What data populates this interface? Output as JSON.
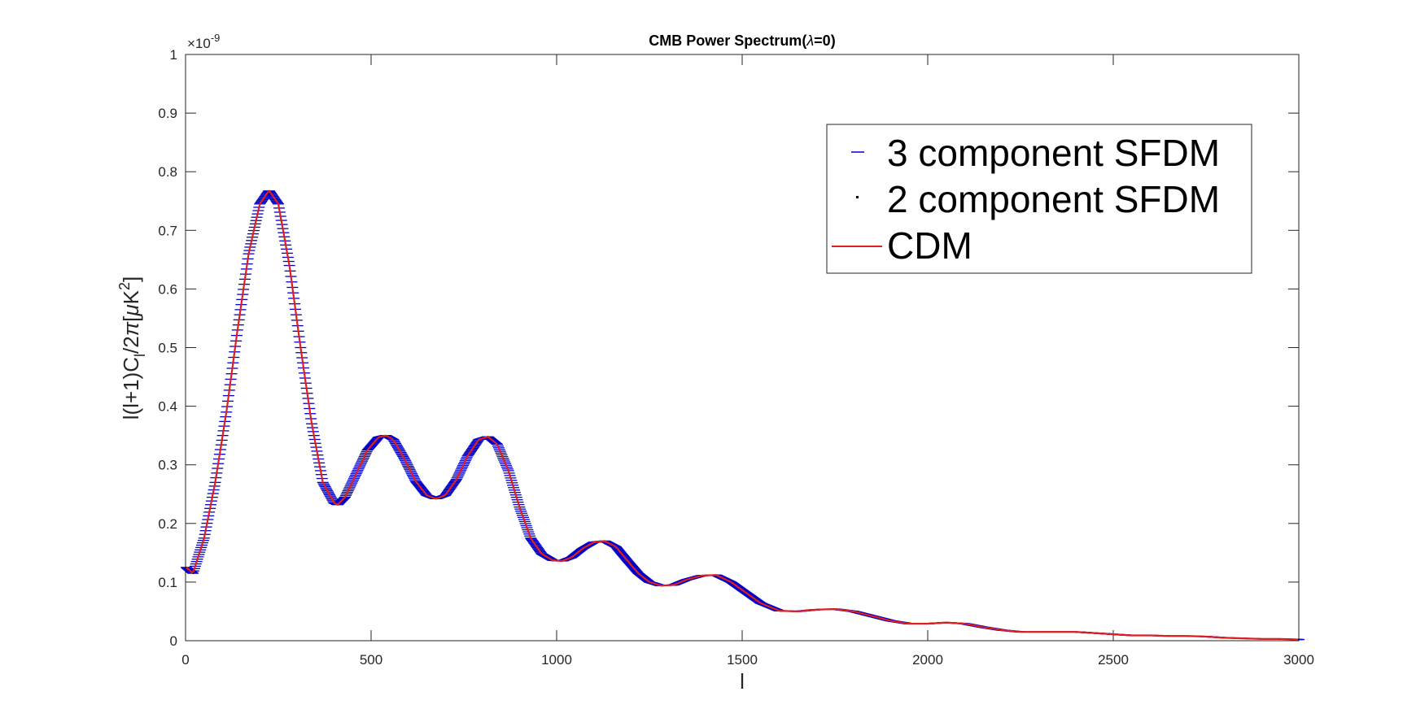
{
  "chart_data": {
    "type": "line",
    "title": "CMB Power Spectrum(λ=0)",
    "xlabel": "l",
    "ylabel": "l(l+1)C_l/2π[μK²]",
    "ylabel_parts": {
      "main": "l(l+1)C",
      "sub": "l",
      "mid": "/2",
      "pi": "π",
      "bracket_open": "[",
      "mu": "μ",
      "K": "K",
      "sup": "2",
      "bracket_close": "]"
    },
    "title_parts": {
      "pre": "CMB Power Spectrum(",
      "lambda": "λ",
      "post": "=0)"
    },
    "y_exponent": {
      "base": "×10",
      "power": "-9"
    },
    "xlim": [
      0,
      3000
    ],
    "ylim": [
      0,
      1
    ],
    "x_ticks": [
      0,
      500,
      1000,
      1500,
      2000,
      2500,
      3000
    ],
    "x_tick_labels": [
      "0",
      "500",
      "1000",
      "1500",
      "2000",
      "2500",
      "3000"
    ],
    "y_ticks": [
      0,
      0.1,
      0.2,
      0.3,
      0.4,
      0.5,
      0.6,
      0.7,
      0.8,
      0.9,
      1
    ],
    "y_tick_labels": [
      "0",
      "0.1",
      "0.2",
      "0.3",
      "0.4",
      "0.5",
      "0.6",
      "0.7",
      "0.8",
      "0.9",
      "1"
    ],
    "grid": false,
    "legend_position": "top-right",
    "x": [
      2,
      20,
      50,
      80,
      110,
      140,
      170,
      200,
      225,
      250,
      280,
      310,
      340,
      370,
      400,
      410,
      430,
      460,
      490,
      520,
      540,
      560,
      590,
      620,
      650,
      675,
      700,
      730,
      760,
      790,
      815,
      840,
      870,
      900,
      930,
      960,
      990,
      1015,
      1040,
      1070,
      1100,
      1130,
      1160,
      1190,
      1220,
      1250,
      1280,
      1315,
      1350,
      1390,
      1430,
      1470,
      1510,
      1550,
      1600,
      1650,
      1700,
      1750,
      1800,
      1850,
      1900,
      1950,
      2000,
      2050,
      2100,
      2150,
      2200,
      2250,
      2300,
      2350,
      2400,
      2450,
      2500,
      2550,
      2600,
      2650,
      2700,
      2750,
      2800,
      2850,
      2900,
      2950,
      3000
    ],
    "series": [
      {
        "name": "3 component SFDM",
        "color": "#0000cc",
        "marker": "dash",
        "values": [
          0.125,
          0.115,
          0.175,
          0.27,
          0.39,
          0.53,
          0.66,
          0.745,
          0.768,
          0.745,
          0.64,
          0.5,
          0.37,
          0.27,
          0.235,
          0.232,
          0.245,
          0.285,
          0.325,
          0.347,
          0.35,
          0.343,
          0.31,
          0.272,
          0.248,
          0.242,
          0.248,
          0.275,
          0.315,
          0.343,
          0.348,
          0.335,
          0.29,
          0.228,
          0.175,
          0.148,
          0.137,
          0.136,
          0.142,
          0.157,
          0.168,
          0.17,
          0.16,
          0.137,
          0.115,
          0.1,
          0.094,
          0.095,
          0.104,
          0.111,
          0.112,
          0.1,
          0.082,
          0.064,
          0.051,
          0.05,
          0.053,
          0.054,
          0.05,
          0.042,
          0.034,
          0.029,
          0.029,
          0.031,
          0.029,
          0.023,
          0.018,
          0.015,
          0.015,
          0.015,
          0.015,
          0.013,
          0.011,
          0.009,
          0.009,
          0.008,
          0.008,
          0.007,
          0.005,
          0.004,
          0.003,
          0.003,
          0.002
        ]
      },
      {
        "name": "2 component SFDM",
        "color": "#000000",
        "marker": "dot",
        "values": [
          0.125,
          0.115,
          0.175,
          0.27,
          0.39,
          0.53,
          0.66,
          0.745,
          0.768,
          0.745,
          0.64,
          0.5,
          0.37,
          0.27,
          0.235,
          0.232,
          0.245,
          0.285,
          0.325,
          0.347,
          0.35,
          0.343,
          0.31,
          0.272,
          0.248,
          0.242,
          0.248,
          0.275,
          0.315,
          0.343,
          0.348,
          0.335,
          0.29,
          0.228,
          0.175,
          0.148,
          0.137,
          0.136,
          0.142,
          0.157,
          0.168,
          0.17,
          0.16,
          0.137,
          0.115,
          0.1,
          0.094,
          0.095,
          0.104,
          0.111,
          0.112,
          0.1,
          0.082,
          0.064,
          0.051,
          0.05,
          0.053,
          0.054,
          0.05,
          0.042,
          0.034,
          0.029,
          0.029,
          0.031,
          0.029,
          0.023,
          0.018,
          0.015,
          0.015,
          0.015,
          0.015,
          0.013,
          0.011,
          0.009,
          0.009,
          0.008,
          0.008,
          0.007,
          0.005,
          0.004,
          0.003,
          0.003,
          0.002
        ]
      },
      {
        "name": "CDM",
        "color": "#e02020",
        "marker": "line",
        "values": [
          0.125,
          0.115,
          0.175,
          0.27,
          0.39,
          0.53,
          0.66,
          0.745,
          0.768,
          0.745,
          0.64,
          0.5,
          0.37,
          0.27,
          0.235,
          0.232,
          0.245,
          0.285,
          0.325,
          0.347,
          0.35,
          0.343,
          0.31,
          0.272,
          0.248,
          0.242,
          0.248,
          0.275,
          0.315,
          0.343,
          0.348,
          0.335,
          0.29,
          0.228,
          0.175,
          0.148,
          0.137,
          0.136,
          0.142,
          0.157,
          0.168,
          0.17,
          0.16,
          0.137,
          0.115,
          0.1,
          0.094,
          0.095,
          0.104,
          0.111,
          0.112,
          0.1,
          0.082,
          0.064,
          0.051,
          0.05,
          0.053,
          0.054,
          0.05,
          0.042,
          0.034,
          0.029,
          0.029,
          0.031,
          0.029,
          0.023,
          0.018,
          0.015,
          0.015,
          0.015,
          0.015,
          0.013,
          0.011,
          0.009,
          0.009,
          0.008,
          0.008,
          0.007,
          0.005,
          0.004,
          0.003,
          0.003,
          0.002
        ]
      }
    ]
  }
}
